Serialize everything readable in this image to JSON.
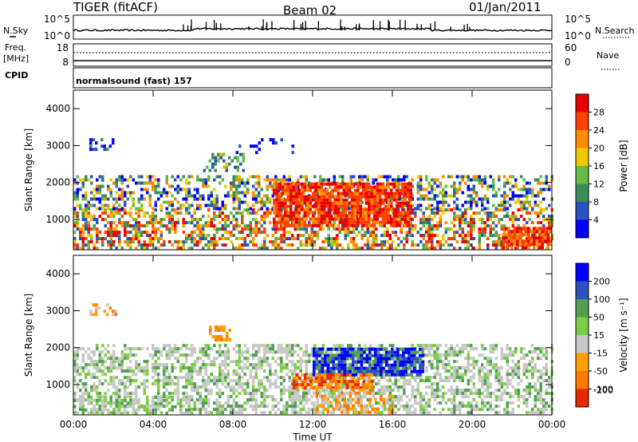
{
  "header": {
    "title": "TIGER (fitACF)",
    "beam": "Beam 02",
    "date": "01/Jan/2011"
  },
  "strip_labels": {
    "nsky": "N.Sky",
    "nsearch": "N.Search",
    "freq": "Freq.",
    "mhz": "[MHz]",
    "nave": "Nave",
    "cpid": "CPID",
    "cpid_value": "normalsound (fast) 157"
  },
  "strip_ticks": {
    "noise_left_top": "10^5",
    "noise_left_bot": "10^0",
    "noise_right_top": "10^5",
    "noise_right_bot": "10^0",
    "freq_top": "18",
    "freq_bot": "8",
    "nave_top": "60",
    "nave_bot": "0"
  },
  "colors": {
    "power": [
      "#0000ff",
      "#2a52be",
      "#3c8c5a",
      "#66bb44",
      "#f0c800",
      "#ff8c00",
      "#ff4000",
      "#e80000"
    ],
    "velocity": [
      "#0000ff",
      "#2a52be",
      "#50a050",
      "#7ccc44",
      "#c8c8c8",
      "#ffa000",
      "#ff7800",
      "#e82800"
    ],
    "frame": "#000000"
  },
  "chart_data": [
    {
      "type": "heatmap",
      "title": "Power",
      "ylabel": "Slant Range [km]",
      "xlabel": "Time UT",
      "x_ticks": [
        "00:00",
        "04:00",
        "08:00",
        "12:00",
        "16:00",
        "20:00",
        "00:00"
      ],
      "x_range_hours": [
        0,
        24
      ],
      "y_ticks": [
        "1000",
        "2000",
        "3000",
        "4000"
      ],
      "y_range_km": [
        180,
        4500
      ],
      "colorbar_label": "Power [dB]",
      "colorbar_ticks": [
        "4",
        "8",
        "12",
        "16",
        "20",
        "24",
        "28"
      ],
      "colorbar_range": [
        0,
        32
      ]
    },
    {
      "type": "heatmap",
      "title": "Velocity",
      "ylabel": "Slant Range [km]",
      "xlabel": "Time UT",
      "x_ticks": [
        "00:00",
        "04:00",
        "08:00",
        "12:00",
        "16:00",
        "20:00",
        "00:00"
      ],
      "x_range_hours": [
        0,
        24
      ],
      "y_ticks": [
        "1000",
        "2000",
        "3000",
        "4000"
      ],
      "y_range_km": [
        180,
        4500
      ],
      "colorbar_label": "Velocity [m s⁻¹]",
      "colorbar_ticks": [
        "200",
        "100",
        "50",
        "15",
        "-15",
        "-50",
        "-100",
        "-200"
      ]
    }
  ],
  "xaxis_title": "Time UT"
}
